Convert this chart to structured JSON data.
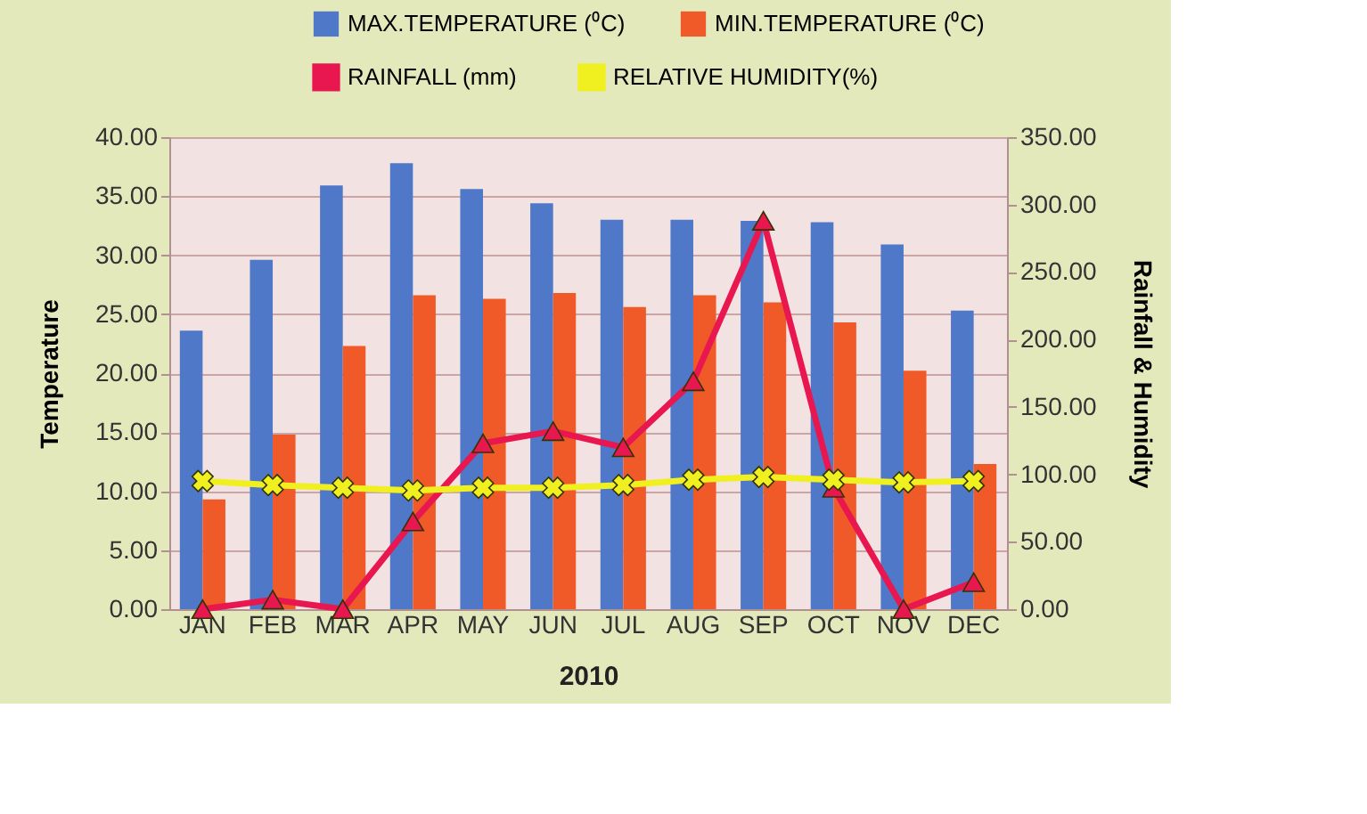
{
  "chart_data": {
    "type": "bar",
    "xlabel": "2010",
    "ylabel": "Temperature",
    "y2label": "Rainfall & Humidity",
    "categories": [
      "JAN",
      "FEB",
      "MAR",
      "APR",
      "MAY",
      "JUN",
      "JUL",
      "AUG",
      "SEP",
      "OCT",
      "NOV",
      "DEC"
    ],
    "series": [
      {
        "name": "MAX.TEMPERATURE (⁰C)",
        "color": "#4f79c8",
        "values": [
          23.6,
          29.6,
          35.9,
          37.8,
          35.6,
          34.4,
          33.0,
          33.0,
          32.9,
          32.8,
          30.9,
          25.3
        ]
      },
      {
        "name": "MIN.TEMPERATURE (⁰C)",
        "color": "#f05a28",
        "values": [
          9.3,
          14.8,
          22.3,
          26.6,
          26.3,
          26.8,
          25.6,
          26.6,
          26.0,
          24.3,
          20.2,
          12.3
        ]
      },
      {
        "name": "RAINFALL (mm)",
        "type": "line",
        "axis": "y2",
        "marker": "triangle",
        "color": "#e8174f",
        "values": [
          0,
          7,
          0,
          65,
          123,
          132,
          120,
          169,
          288,
          90,
          0,
          20
        ]
      },
      {
        "name": "RELATIVE HUMIDITY(%)",
        "type": "line",
        "axis": "y2",
        "marker": "cross",
        "color": "#f0f020",
        "values": [
          95,
          92,
          90,
          88,
          90,
          90,
          92,
          96,
          98,
          96,
          94,
          95
        ]
      }
    ],
    "ylim": [
      0,
      40
    ],
    "yticks": [
      {
        "value": 0,
        "label": "0.00"
      },
      {
        "value": 5,
        "label": "5.00"
      },
      {
        "value": 10,
        "label": "10.00"
      },
      {
        "value": 15,
        "label": "15.00"
      },
      {
        "value": 20,
        "label": "20.00"
      },
      {
        "value": 25,
        "label": "25.00"
      },
      {
        "value": 30,
        "label": "30.00"
      },
      {
        "value": 35,
        "label": "35.00"
      },
      {
        "value": 40,
        "label": "40.00"
      }
    ],
    "y2lim": [
      0,
      350
    ],
    "y2ticks": [
      {
        "value": 0,
        "label": "0.00"
      },
      {
        "value": 50,
        "label": "50.00"
      },
      {
        "value": 100,
        "label": "100.00"
      },
      {
        "value": 150,
        "label": "150.00"
      },
      {
        "value": 200,
        "label": "200.00"
      },
      {
        "value": 250,
        "label": "250.00"
      },
      {
        "value": 300,
        "label": "300.00"
      },
      {
        "value": 350,
        "label": "350.00"
      }
    ],
    "grid": "y",
    "legend": "top"
  }
}
